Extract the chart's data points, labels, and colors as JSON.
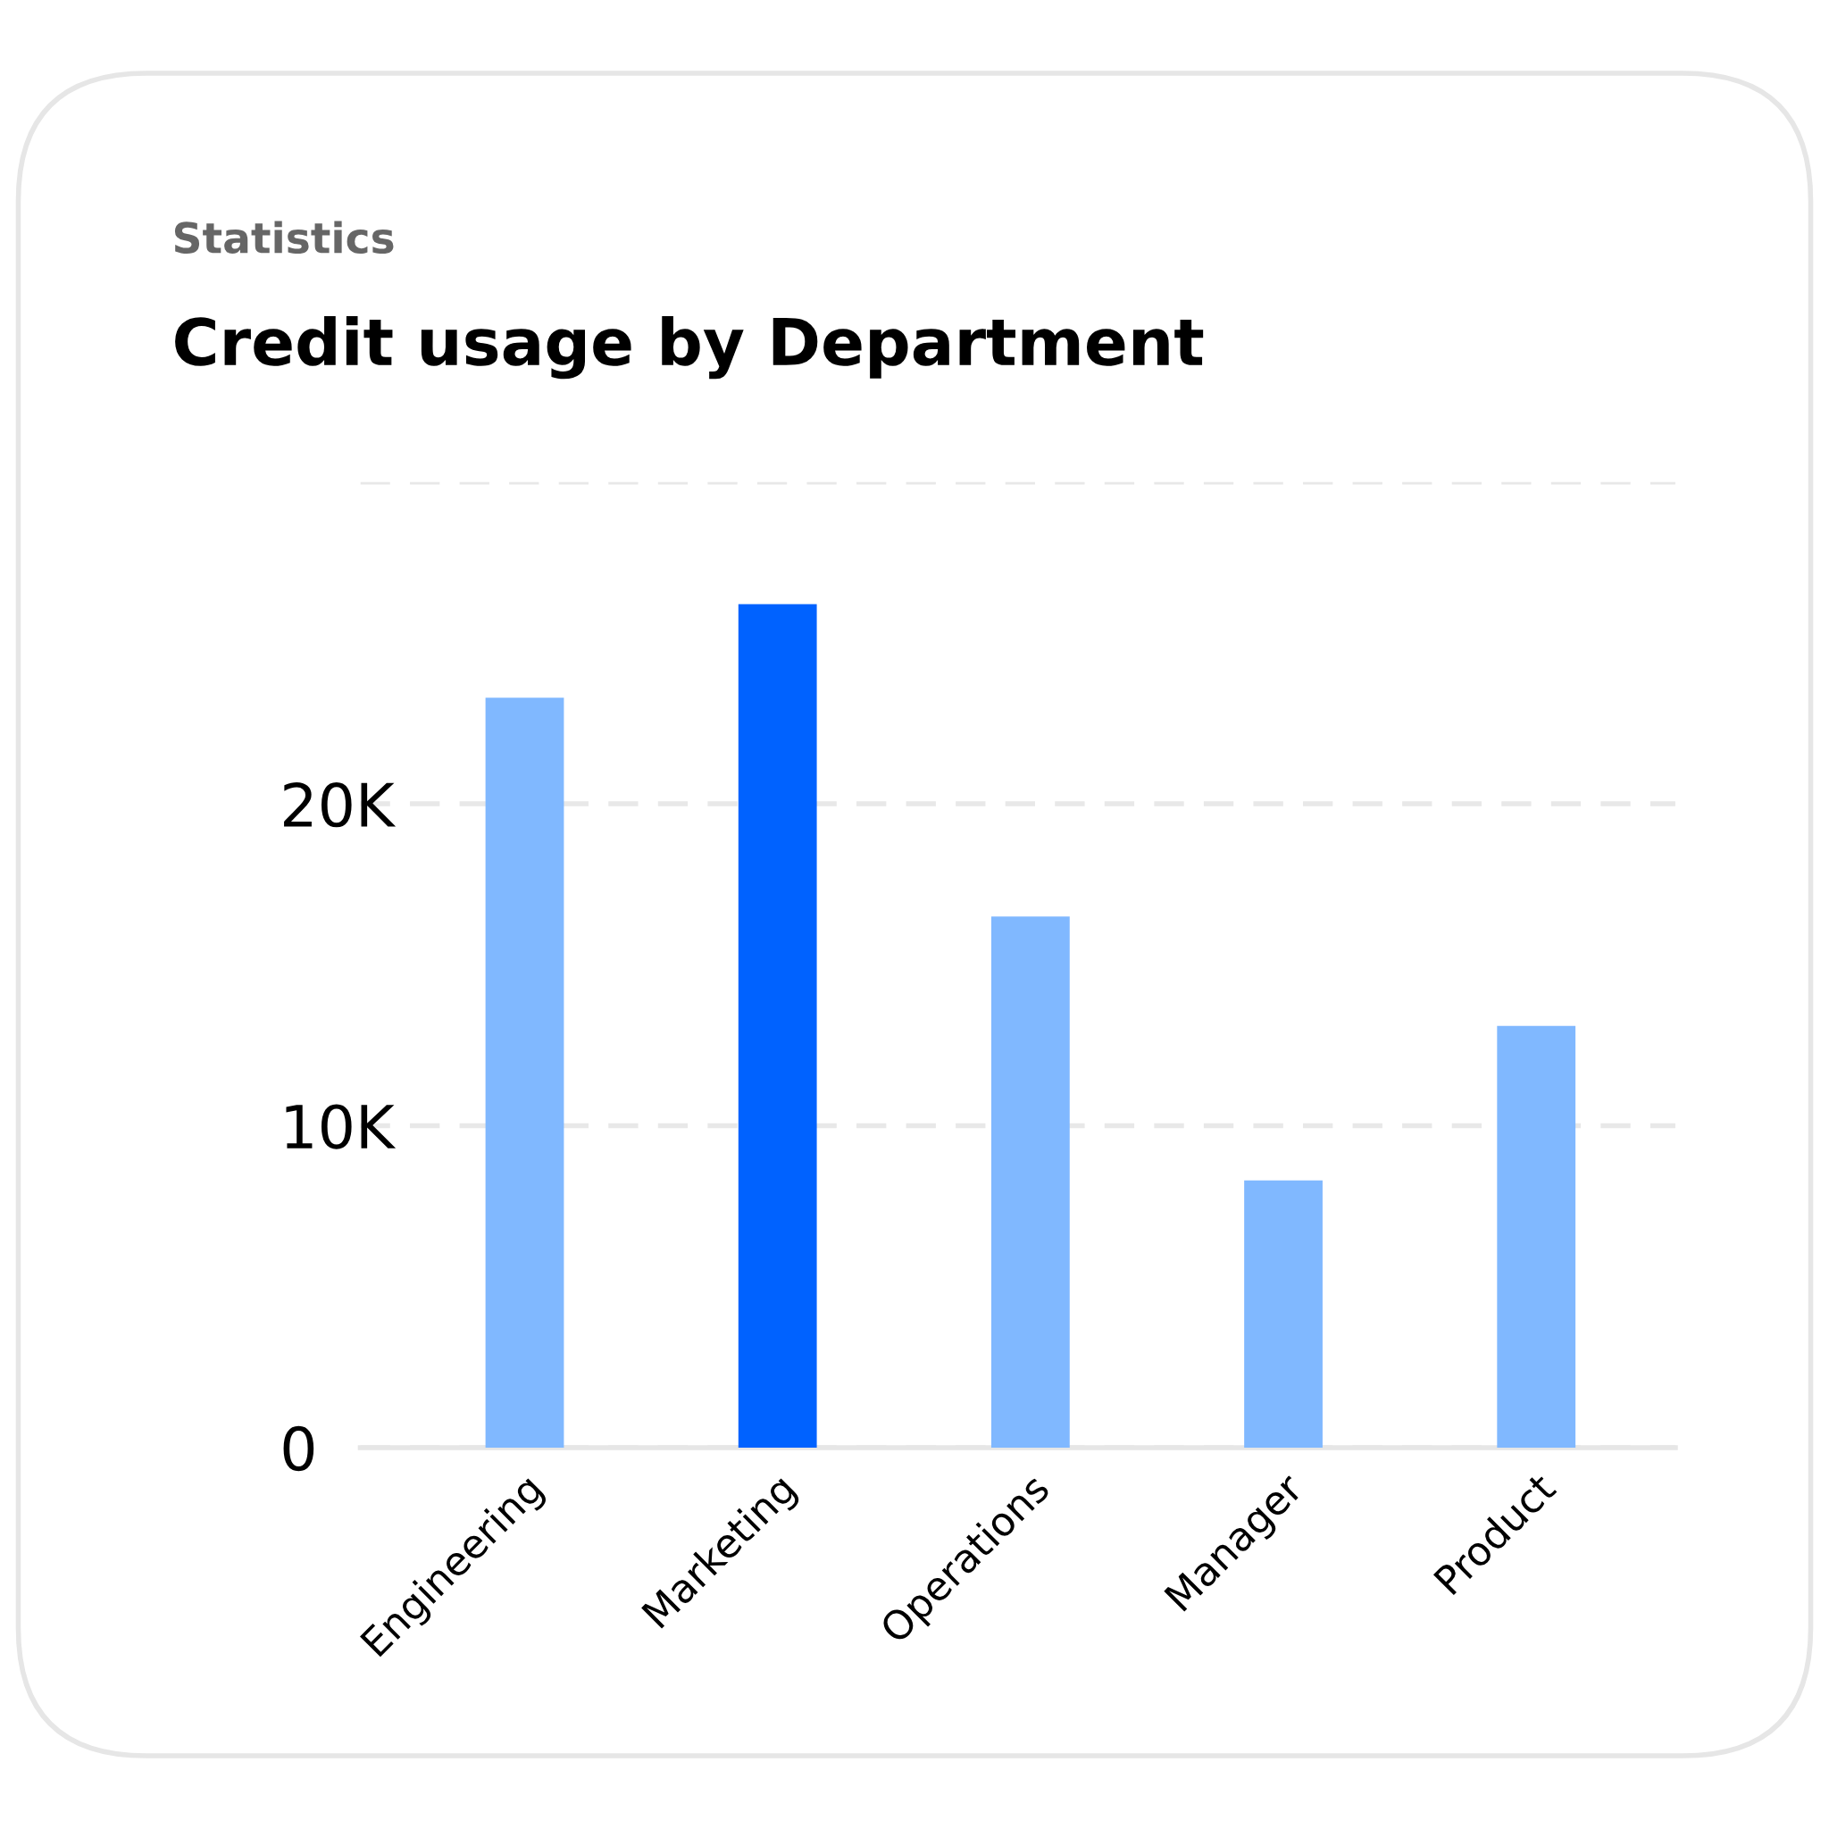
{
  "chart_data": {
    "type": "bar",
    "subtitle": "Statistics",
    "title": "Credit usage by Department",
    "categories": [
      "Engineering",
      "Marketing",
      "Operations",
      "Manager",
      "Product"
    ],
    "values": [
      23300,
      26200,
      16500,
      8300,
      13100
    ],
    "colors": [
      "#80b8ff",
      "#0062ff",
      "#80b8ff",
      "#80b8ff",
      "#80b8ff"
    ],
    "ylim": [
      0,
      30000
    ],
    "yticks": [
      {
        "value": 0,
        "label": "0"
      },
      {
        "value": 10000,
        "label": "10K"
      },
      {
        "value": 20000,
        "label": "20K"
      },
      {
        "value": 30000,
        "label": null
      }
    ],
    "grid": "y",
    "line_style": "dashed"
  }
}
